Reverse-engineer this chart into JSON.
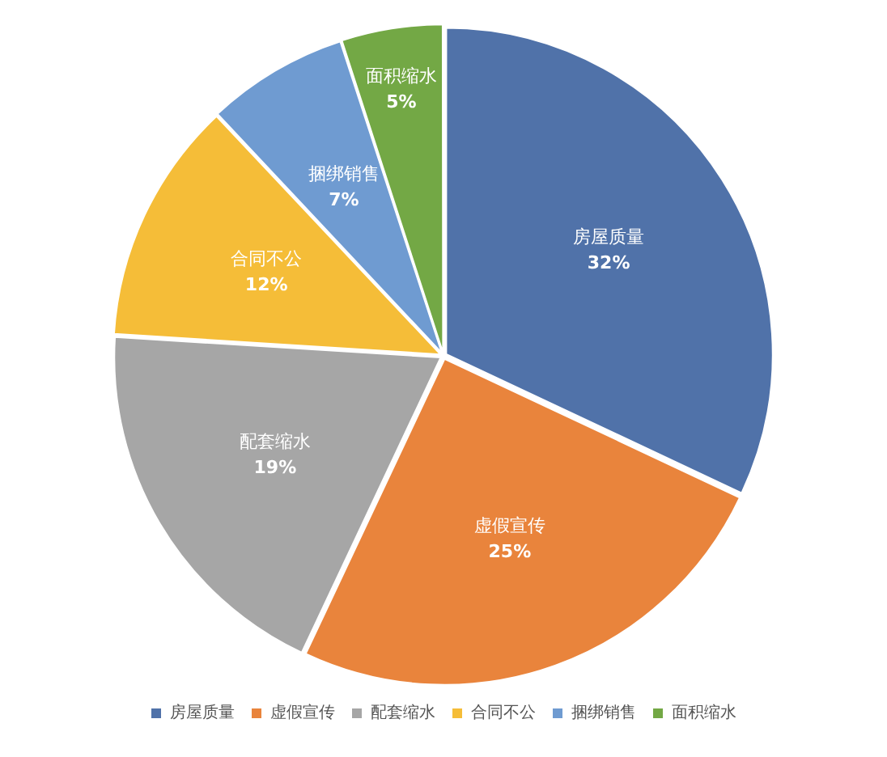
{
  "chart_data": {
    "type": "pie",
    "categories": [
      "房屋质量",
      "虚假宣传",
      "配套缩水",
      "合同不公",
      "捆绑销售",
      "面积缩水"
    ],
    "values": [
      32,
      25,
      19,
      12,
      7,
      5
    ],
    "value_labels": [
      "32%",
      "25%",
      "19%",
      "12%",
      "7%",
      "5%"
    ],
    "colors": [
      "#5072a9",
      "#e9843c",
      "#a6a6a6",
      "#f5bd38",
      "#6f9bd1",
      "#73a845"
    ],
    "legend": "bottom"
  }
}
